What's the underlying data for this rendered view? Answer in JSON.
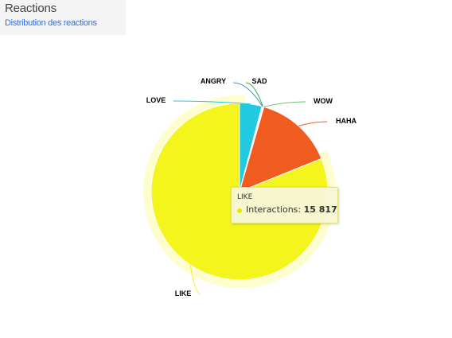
{
  "header": {
    "title": "Reactions",
    "subtitle": "Distribution des reactions"
  },
  "tooltip": {
    "category": "LIKE",
    "label": "Interactions:",
    "value": "15 817"
  },
  "chart_data": {
    "type": "pie",
    "series_label": "Interactions",
    "slices": [
      {
        "label": "LIKE",
        "value": 15817,
        "color": "#f4f51c",
        "selected": true
      },
      {
        "label": "LOVE",
        "value": 797,
        "color": "#21c9e1"
      },
      {
        "label": "ANGRY",
        "value": 22,
        "color": "#3f8fc9"
      },
      {
        "label": "SAD",
        "value": 22,
        "color": "#2eb53f"
      },
      {
        "label": "WOW",
        "value": 30,
        "color": "#6cc26a"
      },
      {
        "label": "HAHA",
        "value": 2810,
        "color": "#f05c1f"
      }
    ]
  }
}
